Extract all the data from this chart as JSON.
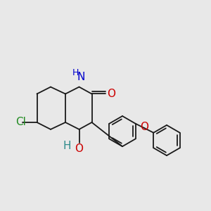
{
  "background_color": "#e8e8e8",
  "bond_color": "#1a1a1a",
  "atom_colors": {
    "O": "#cc0000",
    "N": "#0000cc",
    "Cl": "#228b22",
    "H_OH": "#2e8b8b",
    "C": "#1a1a1a"
  },
  "figsize": [
    3.0,
    3.0
  ],
  "dpi": 100
}
